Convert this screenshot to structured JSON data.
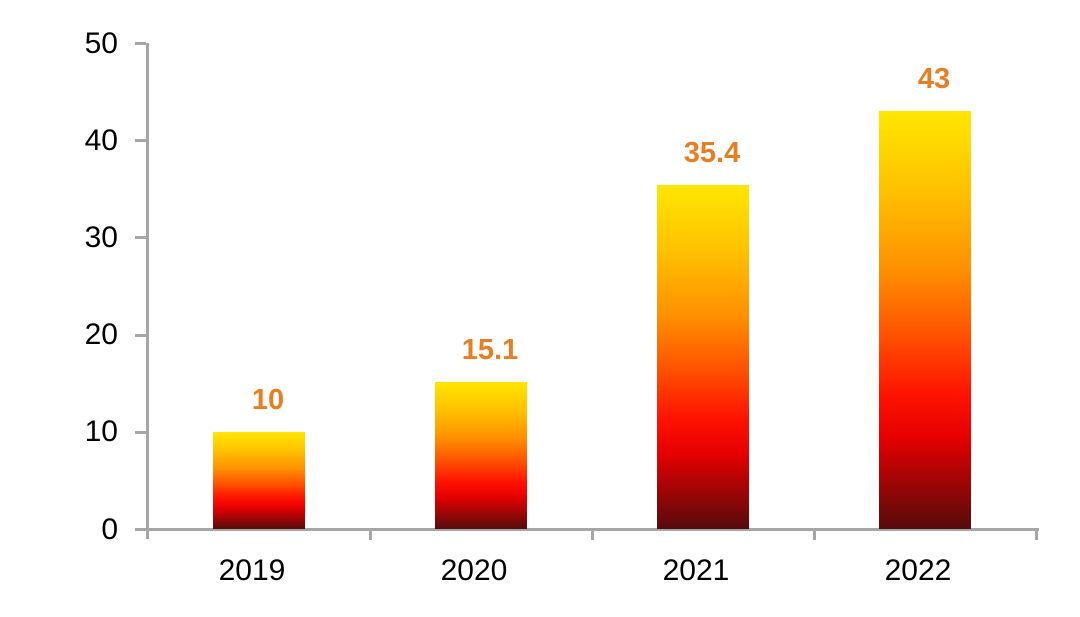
{
  "chart_data": {
    "type": "bar",
    "categories": [
      "2019",
      "2020",
      "2021",
      "2022"
    ],
    "values": [
      10,
      15.1,
      35.4,
      43
    ],
    "value_labels": [
      "10",
      "15.1",
      "35.4",
      "43"
    ],
    "title": "",
    "xlabel": "",
    "ylabel": "",
    "ylim": [
      0,
      50
    ],
    "yticks": [
      0,
      10,
      20,
      30,
      40,
      50
    ],
    "grid": false,
    "legend": false,
    "colors": {
      "value_label": "#E87D22",
      "axis": "#A6A6A6",
      "tick_label": "#000000",
      "bar_gradient": [
        {
          "pos": 0,
          "color": "#FFE600"
        },
        {
          "pos": 18,
          "color": "#FFC400"
        },
        {
          "pos": 38,
          "color": "#FF9000"
        },
        {
          "pos": 54,
          "color": "#FF5000"
        },
        {
          "pos": 68,
          "color": "#FF1200"
        },
        {
          "pos": 78,
          "color": "#E60000"
        },
        {
          "pos": 88,
          "color": "#A50505"
        },
        {
          "pos": 100,
          "color": "#550B0B"
        }
      ]
    }
  }
}
